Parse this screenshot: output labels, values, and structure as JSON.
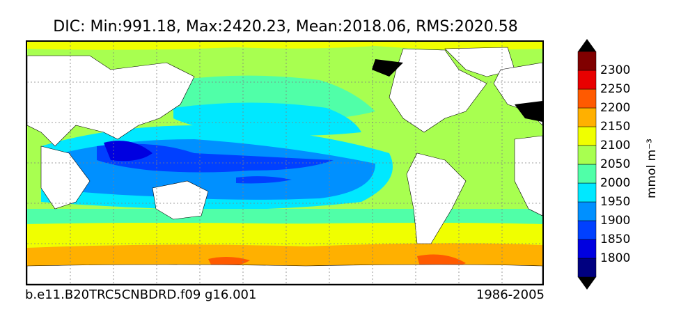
{
  "title": "DIC: Min:991.18, Max:2420.23, Mean:2018.06, RMS:2020.58",
  "footer": {
    "case": "b.e11.B20TRC5CNBDRD.f09 g16.001",
    "years": "1986-2005"
  },
  "colorbar": {
    "units_label": "mmol m⁻³",
    "ticks": [
      "1800",
      "1850",
      "1900",
      "1950",
      "2000",
      "2050",
      "2100",
      "2150",
      "2200",
      "2250",
      "2300"
    ],
    "colors": [
      "#00007f",
      "#0000d8",
      "#0040ff",
      "#0090ff",
      "#00e0ff",
      "#50ff a0",
      "#a0ff50",
      "#e0ff00",
      "#ffa800",
      "#ff5000",
      "#e00000",
      "#7f0000"
    ],
    "segment_colors": [
      "#000080",
      "#0000e0",
      "#0040ff",
      "#0090ff",
      "#00e8ff",
      "#50ffa8",
      "#a8ff50",
      "#f0ff00",
      "#ffb000",
      "#ff5a00",
      "#e80000",
      "#800000"
    ]
  },
  "colors": {
    "land": "#ffffff",
    "gridline": "#808080"
  }
}
